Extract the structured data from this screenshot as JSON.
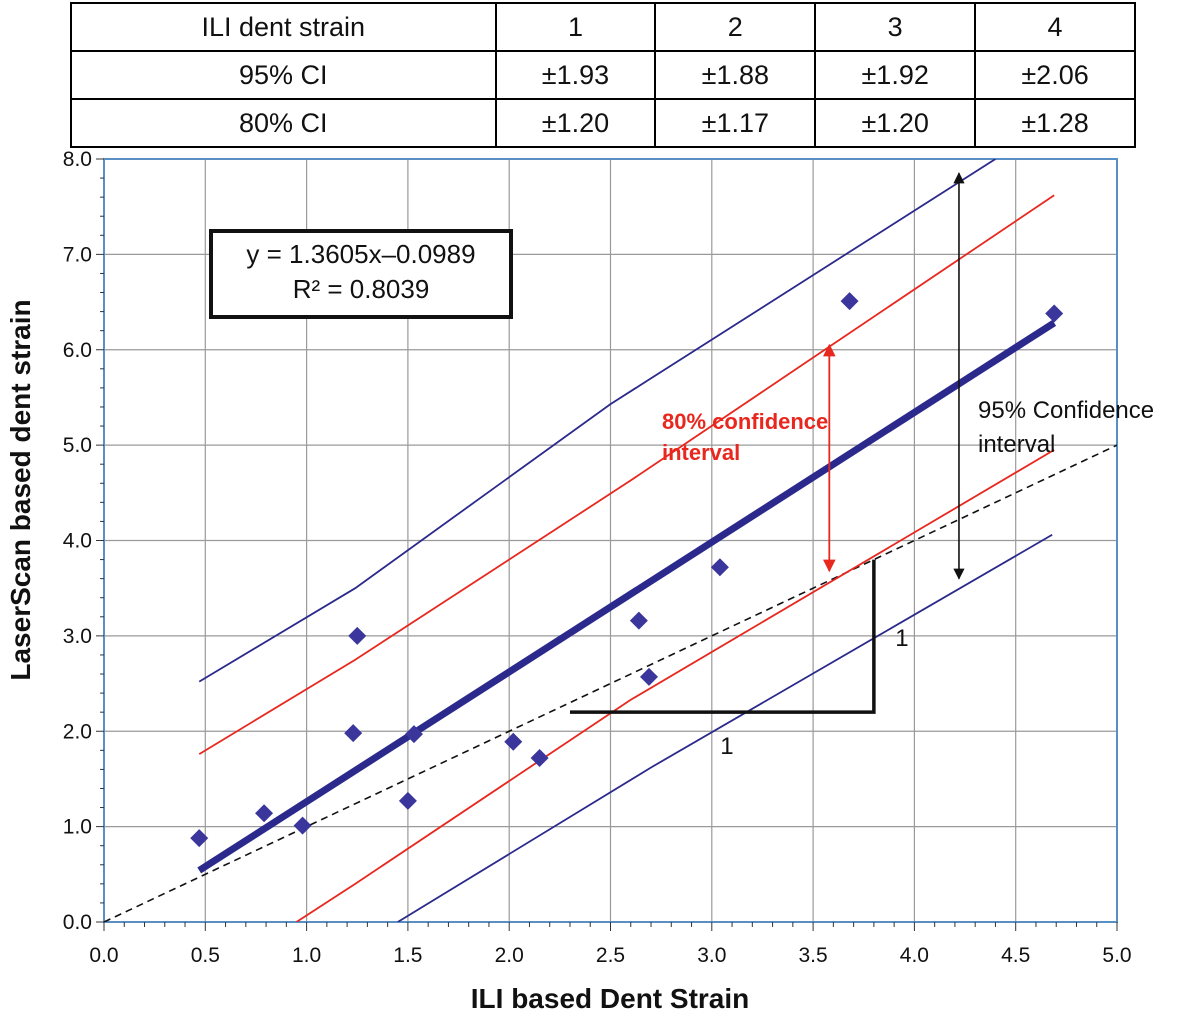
{
  "ci_table": {
    "header": [
      "ILI dent strain",
      "1",
      "2",
      "3",
      "4"
    ],
    "rows": [
      [
        "95% CI",
        "±1.93",
        "±1.88",
        "±1.92",
        "±2.06"
      ],
      [
        "80% CI",
        "±1.20",
        "±1.17",
        "±1.20",
        "±1.28"
      ]
    ]
  },
  "chart_data": {
    "type": "scatter",
    "xlabel": "ILI based Dent Strain",
    "ylabel": "LaserScan based dent strain",
    "xlim": [
      0,
      5
    ],
    "ylim": [
      0,
      8
    ],
    "x_ticks": [
      "0.0",
      "0.5",
      "1.0",
      "1.5",
      "2.0",
      "2.5",
      "3.0",
      "3.5",
      "4.0",
      "4.5",
      "5.0"
    ],
    "y_ticks": [
      "0.0",
      "1.0",
      "2.0",
      "3.0",
      "4.0",
      "5.0",
      "6.0",
      "7.0",
      "8.0"
    ],
    "grid": true,
    "points": [
      {
        "x": 0.47,
        "y": 0.88
      },
      {
        "x": 0.79,
        "y": 1.14
      },
      {
        "x": 0.98,
        "y": 1.01
      },
      {
        "x": 1.23,
        "y": 1.98
      },
      {
        "x": 1.25,
        "y": 3.0
      },
      {
        "x": 1.5,
        "y": 1.27
      },
      {
        "x": 1.53,
        "y": 1.97
      },
      {
        "x": 2.02,
        "y": 1.89
      },
      {
        "x": 2.15,
        "y": 1.72
      },
      {
        "x": 2.64,
        "y": 3.16
      },
      {
        "x": 2.69,
        "y": 2.57
      },
      {
        "x": 3.04,
        "y": 3.72
      },
      {
        "x": 3.68,
        "y": 6.51
      },
      {
        "x": 4.69,
        "y": 6.38
      }
    ],
    "regression": {
      "slope": 1.3605,
      "intercept": -0.0989,
      "x_range": [
        0.47,
        4.69
      ]
    },
    "equation_line1": "y = 1.3605x–0.0989",
    "equation_line2": "R² = 0.8039",
    "ci_95_band": {
      "upper": [
        [
          0.47,
          2.52
        ],
        [
          1.24,
          3.5
        ],
        [
          2.5,
          5.43
        ],
        [
          4.4,
          8.0
        ]
      ],
      "lower": [
        [
          1.45,
          0.0
        ],
        [
          2.7,
          1.62
        ],
        [
          4.68,
          4.06
        ]
      ]
    },
    "ci_80_band": {
      "upper": [
        [
          0.47,
          1.76
        ],
        [
          1.24,
          2.75
        ],
        [
          2.6,
          4.63
        ],
        [
          4.69,
          7.62
        ]
      ],
      "lower": [
        [
          0.95,
          0.0
        ],
        [
          1.24,
          0.4
        ],
        [
          2.6,
          2.33
        ],
        [
          4.69,
          4.95
        ]
      ]
    },
    "unity_line": {
      "slope": 1.0,
      "intercept": 0.0
    },
    "slope_triangle": {
      "x1": 2.3,
      "x2": 3.8,
      "y_base": 2.2,
      "y_top": 3.8,
      "horizontal_label": "1",
      "vertical_label": "1"
    },
    "annotation_95": {
      "x": 4.22,
      "y_top": 7.85,
      "y_bottom": 3.6,
      "label_line1": "95% Confidence",
      "label_line2": "interval"
    },
    "annotation_80": {
      "x": 3.58,
      "y_top": 6.05,
      "y_bottom": 3.68,
      "label_line1": "80% confidence",
      "label_line2": "interval"
    },
    "colors": {
      "navy": "#2b2a8c",
      "red": "#e8281e",
      "marker": "#3b369c",
      "grid": "#9a9a9a",
      "frame": "#5a8fc6"
    }
  }
}
